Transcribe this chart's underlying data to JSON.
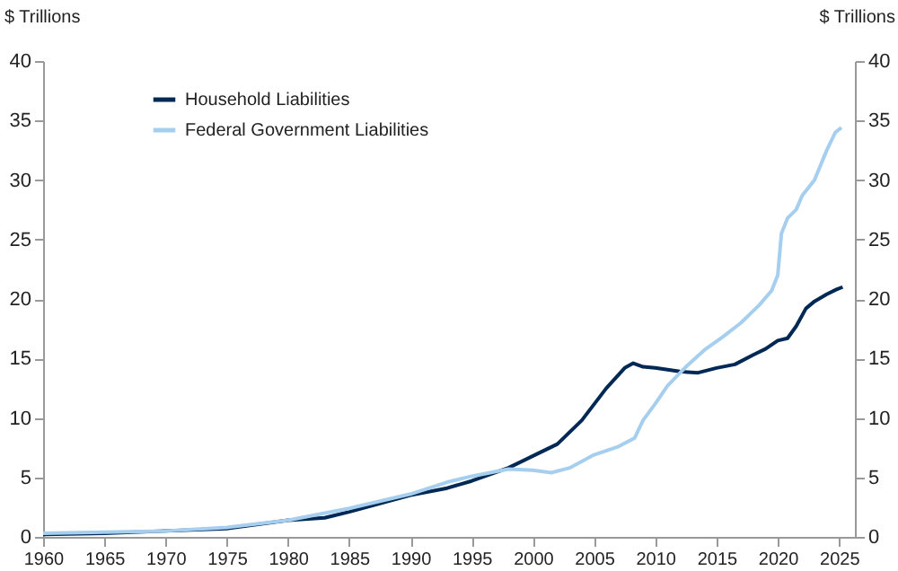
{
  "chart_data": {
    "type": "line",
    "ylabel": "$ Trillions",
    "y2label": "$ Trillions",
    "xlim": [
      1960,
      2026.3
    ],
    "xticks": [
      1960,
      1965,
      1970,
      1975,
      1980,
      1985,
      1990,
      1995,
      2000,
      2005,
      2010,
      2015,
      2020,
      2025
    ],
    "ylim": [
      0,
      40
    ],
    "yticks": [
      0,
      5,
      10,
      15,
      20,
      25,
      30,
      35,
      40
    ],
    "y2lim": [
      0,
      40
    ],
    "y2ticks": [
      0,
      5,
      10,
      15,
      20,
      25,
      30,
      35,
      40
    ],
    "legend": "top left",
    "grid": false,
    "series": [
      {
        "name": "Household Liabilities",
        "color": "#002855",
        "x": [
          1960,
          1965,
          1970,
          1975,
          1980,
          1983,
          1985,
          1990,
          1993,
          1995,
          1998,
          2000,
          2002,
          2004,
          2006,
          2007.5,
          2008.2,
          2009,
          2010,
          2012,
          2013.5,
          2015,
          2016.5,
          2018,
          2019,
          2020,
          2020.8,
          2021.5,
          2022.3,
          2023,
          2024,
          2024.8,
          2025.3
        ],
        "values": [
          0.2,
          0.3,
          0.5,
          0.7,
          1.4,
          1.6,
          2.1,
          3.5,
          4.1,
          4.7,
          5.8,
          6.8,
          7.8,
          9.8,
          12.5,
          14.2,
          14.6,
          14.3,
          14.2,
          13.9,
          13.8,
          14.2,
          14.5,
          15.3,
          15.8,
          16.5,
          16.7,
          17.7,
          19.2,
          19.8,
          20.4,
          20.8,
          21.0
        ]
      },
      {
        "name": "Federal Government Liabilities",
        "color": "#a6cfef",
        "x": [
          1960,
          1970,
          1975,
          1980,
          1985,
          1990,
          1993,
          1995,
          1998,
          2000,
          2001.5,
          2003,
          2005,
          2007,
          2008.3,
          2009,
          2010,
          2011,
          2012.5,
          2014,
          2015.5,
          2017,
          2018.5,
          2019.5,
          2020,
          2020.3,
          2020.8,
          2021.5,
          2022,
          2023,
          2024,
          2024.7,
          2025.2
        ],
        "values": [
          0.3,
          0.5,
          0.8,
          1.4,
          2.4,
          3.6,
          4.6,
          5.1,
          5.7,
          5.6,
          5.4,
          5.8,
          6.9,
          7.6,
          8.3,
          9.8,
          11.2,
          12.7,
          14.3,
          15.7,
          16.8,
          18.0,
          19.5,
          20.7,
          22.0,
          25.5,
          26.8,
          27.5,
          28.7,
          30.0,
          32.5,
          34.0,
          34.4
        ]
      }
    ]
  }
}
